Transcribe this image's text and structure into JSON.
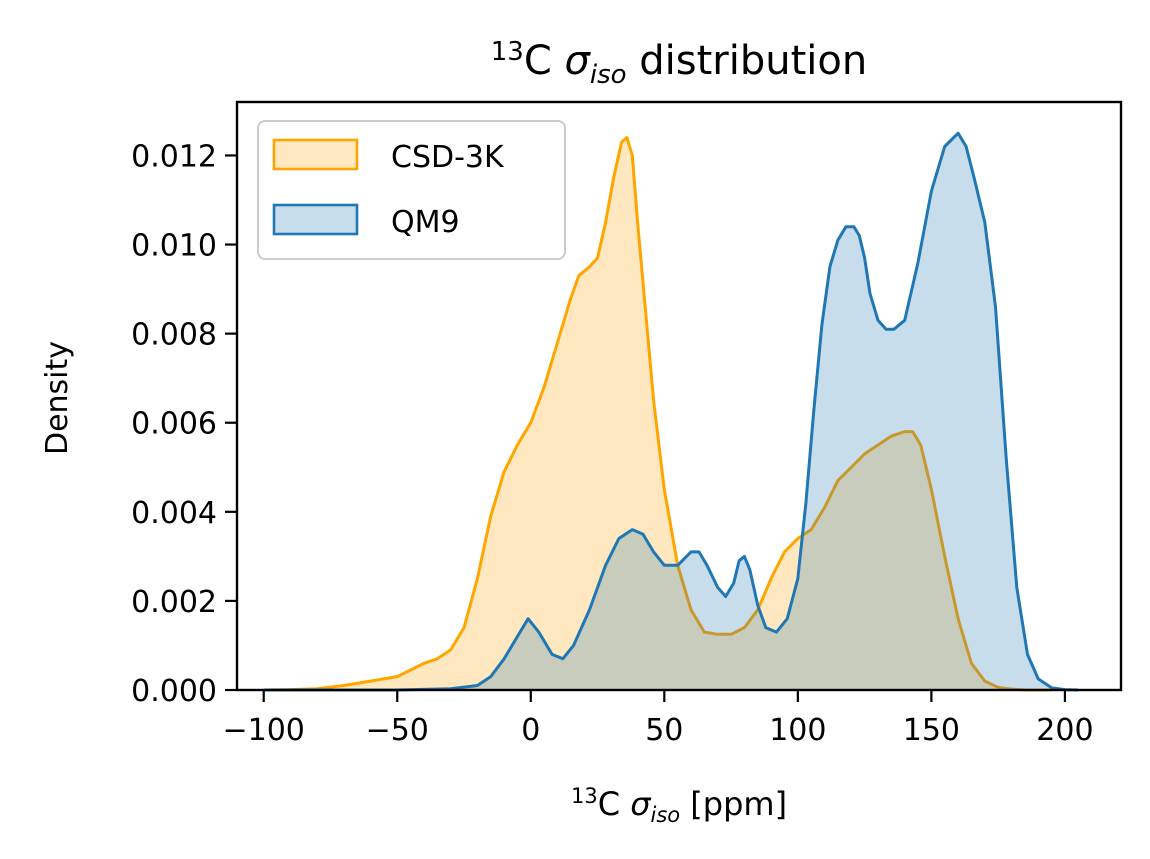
{
  "chart_data": {
    "type": "area",
    "title": {
      "sup": "13",
      "base": "C ",
      "sym": "σ",
      "sub": "iso",
      "rest": " distribution"
    },
    "xlabel": {
      "sup": "13",
      "base": "C ",
      "sym": "σ",
      "sub": "iso",
      "rest": " [ppm]"
    },
    "ylabel": "Density",
    "xlim": [
      -110,
      221
    ],
    "ylim": [
      0,
      0.0132
    ],
    "xticks": [
      -100,
      -50,
      0,
      50,
      100,
      150,
      200
    ],
    "xtick_labels": [
      "−100",
      "−50",
      "0",
      "50",
      "100",
      "150",
      "200"
    ],
    "yticks": [
      0,
      0.002,
      0.004,
      0.006,
      0.008,
      0.01,
      0.012
    ],
    "ytick_labels": [
      "0.000",
      "0.002",
      "0.004",
      "0.006",
      "0.008",
      "0.010",
      "0.012"
    ],
    "grid": false,
    "legend_position": "top-left",
    "series": [
      {
        "name": "CSD-3K",
        "color": "#FFA500",
        "fill_opacity": 0.25,
        "x": [
          -100,
          -90,
          -80,
          -70,
          -60,
          -50,
          -45,
          -40,
          -35,
          -30,
          -25,
          -20,
          -15,
          -10,
          -5,
          0,
          5,
          10,
          15,
          18,
          22,
          25,
          28,
          31,
          34,
          36,
          38,
          40,
          43,
          46,
          50,
          55,
          60,
          65,
          70,
          75,
          80,
          85,
          90,
          95,
          100,
          105,
          110,
          115,
          120,
          125,
          130,
          135,
          140,
          143,
          146,
          150,
          155,
          160,
          165,
          170,
          175,
          180,
          185,
          190,
          195
        ],
        "y": [
          0.0,
          1e-05,
          3e-05,
          0.0001,
          0.0002,
          0.0003,
          0.00045,
          0.0006,
          0.0007,
          0.0009,
          0.0014,
          0.0025,
          0.0039,
          0.0049,
          0.0055,
          0.006,
          0.0068,
          0.0078,
          0.0088,
          0.0093,
          0.0095,
          0.0097,
          0.0105,
          0.0115,
          0.0123,
          0.0124,
          0.012,
          0.0105,
          0.0085,
          0.0065,
          0.0045,
          0.0028,
          0.0018,
          0.0013,
          0.00125,
          0.00125,
          0.0014,
          0.0018,
          0.0025,
          0.0031,
          0.0034,
          0.0036,
          0.0041,
          0.0047,
          0.005,
          0.0053,
          0.0055,
          0.0057,
          0.0058,
          0.0058,
          0.0055,
          0.0045,
          0.003,
          0.0016,
          0.0006,
          0.0002,
          6e-05,
          2e-05,
          0.0,
          0.0,
          0.0
        ]
      },
      {
        "name": "QM9",
        "color": "#1F77B4",
        "fill_opacity": 0.25,
        "x": [
          -100,
          -50,
          -30,
          -20,
          -15,
          -10,
          -5,
          -1,
          3,
          8,
          12,
          16,
          22,
          28,
          33,
          38,
          42,
          46,
          50,
          55,
          60,
          63,
          66,
          70,
          73,
          76,
          78,
          80,
          82,
          85,
          88,
          92,
          96,
          100,
          103,
          106,
          109,
          112,
          115,
          118,
          121,
          123,
          125,
          127,
          130,
          133,
          136,
          140,
          145,
          150,
          155,
          160,
          163,
          166,
          170,
          174,
          178,
          182,
          186,
          190,
          195,
          200,
          205
        ],
        "y": [
          0.0,
          0.0,
          3e-05,
          0.0001,
          0.0003,
          0.0007,
          0.0012,
          0.0016,
          0.0013,
          0.0008,
          0.0007,
          0.001,
          0.0018,
          0.0028,
          0.0034,
          0.0036,
          0.0035,
          0.0031,
          0.0028,
          0.0028,
          0.0031,
          0.0031,
          0.0028,
          0.0023,
          0.0021,
          0.0024,
          0.0029,
          0.003,
          0.0027,
          0.0019,
          0.0014,
          0.0013,
          0.0016,
          0.0025,
          0.0042,
          0.0063,
          0.0082,
          0.0095,
          0.0101,
          0.0104,
          0.0104,
          0.0102,
          0.0097,
          0.0089,
          0.0083,
          0.0081,
          0.0081,
          0.0083,
          0.0096,
          0.0112,
          0.0122,
          0.0125,
          0.0122,
          0.0115,
          0.0105,
          0.0086,
          0.0052,
          0.0023,
          0.0008,
          0.00025,
          5e-05,
          1e-05,
          0.0
        ]
      }
    ]
  }
}
